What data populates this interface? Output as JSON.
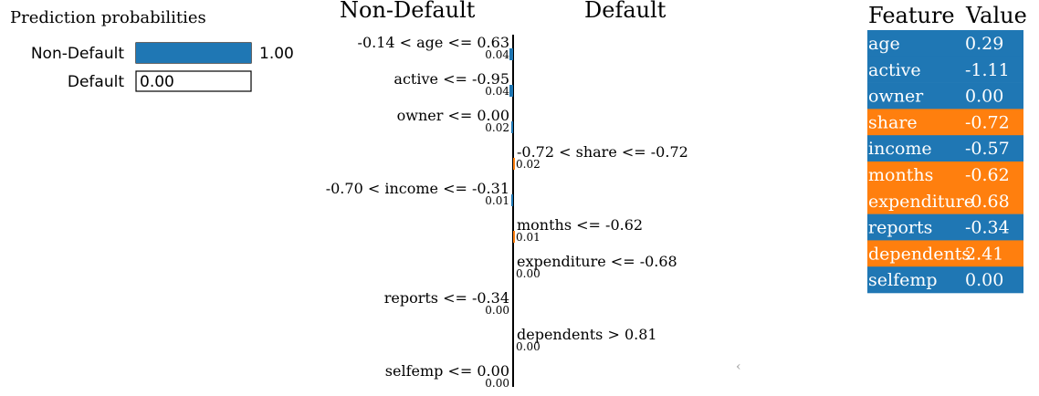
{
  "colors": {
    "negative": "#1f77b4",
    "positive": "#ff7f0e",
    "axis": "#000000"
  },
  "chart_data": [
    {
      "type": "bar",
      "title": "Prediction probabilities",
      "categories": [
        "Non-Default",
        "Default"
      ],
      "values": [
        1.0,
        0.0
      ],
      "value_labels": [
        "1.00",
        "0.00"
      ],
      "xlim": [
        0,
        1
      ]
    },
    {
      "type": "bar",
      "orientation": "horizontal",
      "class_labels": {
        "negative": "Non-Default",
        "positive": "Default"
      },
      "features": [
        {
          "label": "-0.14 < age <= 0.63",
          "weight": 0.04,
          "display": "0.04",
          "side": "negative"
        },
        {
          "label": "active <= -0.95",
          "weight": 0.04,
          "display": "0.04",
          "side": "negative"
        },
        {
          "label": "owner <= 0.00",
          "weight": 0.02,
          "display": "0.02",
          "side": "negative"
        },
        {
          "label": "-0.72 < share <= -0.72",
          "weight": 0.02,
          "display": "0.02",
          "side": "positive"
        },
        {
          "label": "-0.70 < income <= -0.31",
          "weight": 0.01,
          "display": "0.01",
          "side": "negative"
        },
        {
          "label": "months <= -0.62",
          "weight": 0.01,
          "display": "0.01",
          "side": "positive"
        },
        {
          "label": "expenditure <= -0.68",
          "weight": 0.0,
          "display": "0.00",
          "side": "positive"
        },
        {
          "label": "reports <= -0.34",
          "weight": 0.0,
          "display": "0.00",
          "side": "negative"
        },
        {
          "label": "dependents > 0.81",
          "weight": 0.0,
          "display": "0.00",
          "side": "positive"
        },
        {
          "label": "selfemp <= 0.00",
          "weight": 0.0,
          "display": "0.00",
          "side": "negative"
        }
      ]
    },
    {
      "type": "table",
      "columns": [
        "Feature",
        "Value"
      ],
      "rows": [
        {
          "feature": "age",
          "value": "0.29",
          "side": "negative"
        },
        {
          "feature": "active",
          "value": "-1.11",
          "side": "negative"
        },
        {
          "feature": "owner",
          "value": "0.00",
          "side": "negative"
        },
        {
          "feature": "share",
          "value": "-0.72",
          "side": "positive"
        },
        {
          "feature": "income",
          "value": "-0.57",
          "side": "negative"
        },
        {
          "feature": "months",
          "value": "-0.62",
          "side": "positive"
        },
        {
          "feature": "expenditure",
          "value": "-0.68",
          "side": "positive"
        },
        {
          "feature": "reports",
          "value": "-0.34",
          "side": "negative"
        },
        {
          "feature": "dependents",
          "value": "2.41",
          "side": "positive"
        },
        {
          "feature": "selfemp",
          "value": "0.00",
          "side": "negative"
        }
      ]
    }
  ],
  "scroll_indicator": "‹"
}
